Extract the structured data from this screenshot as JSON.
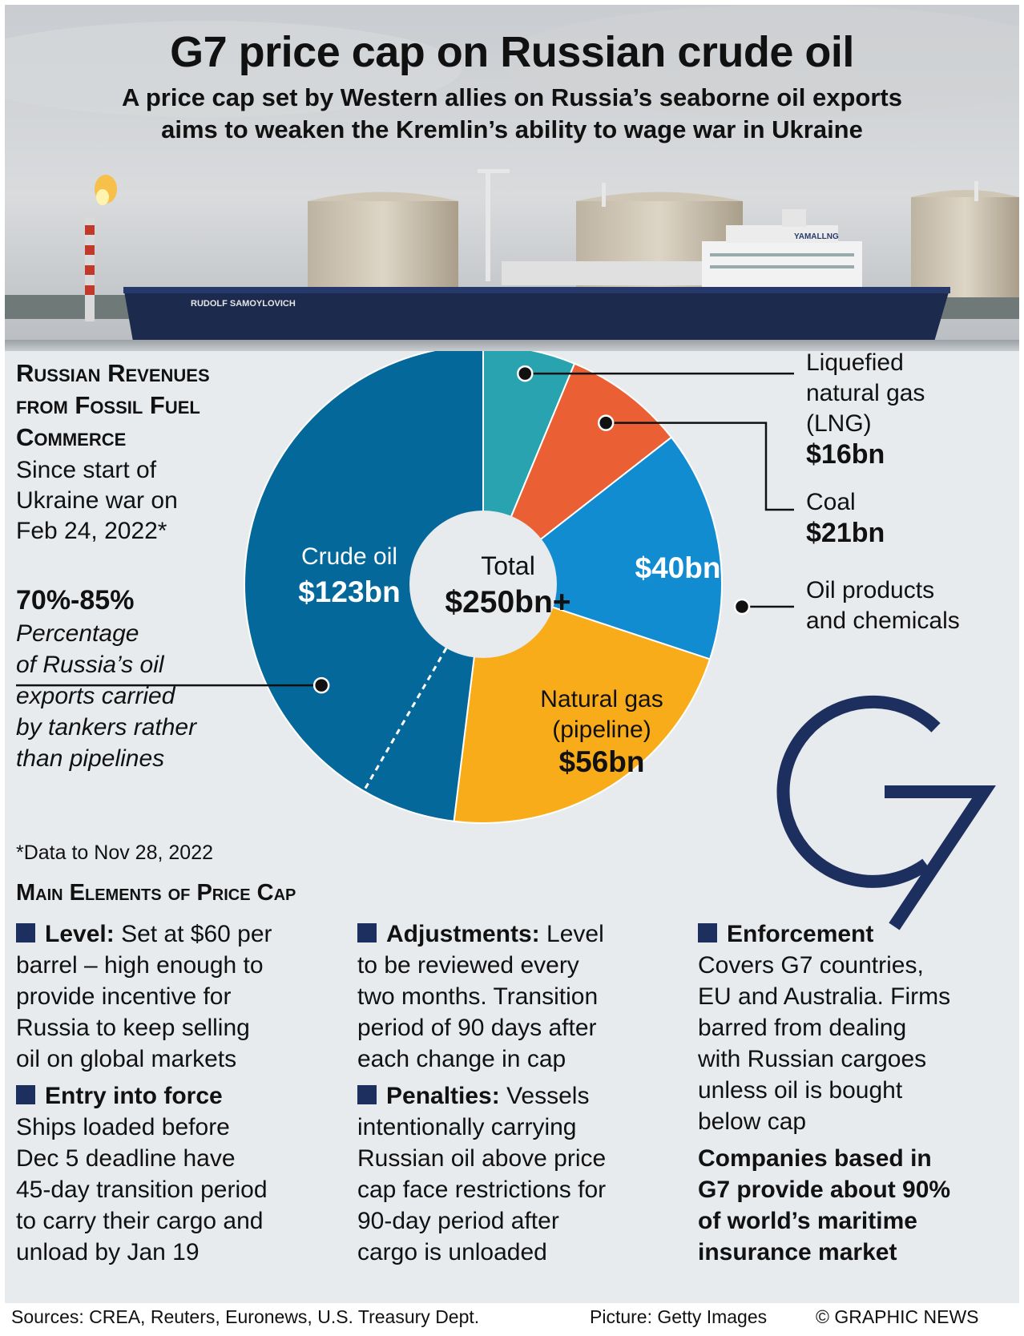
{
  "header": {
    "title": "G7 price cap on Russian crude oil",
    "subtitle_line1": "A price cap set by Western allies on Russia’s seaborne oil exports",
    "subtitle_line2": "aims to weaken the Kremlin’s ability to wage war in Ukraine",
    "ship_name": "RUDOLF SAMOYLOVICH",
    "ship_marking": "YAMALLNG"
  },
  "revenues": {
    "heading_line1": "Russian Revenues",
    "heading_line2": "from Fossil Fuel",
    "heading_line3": "Commerce",
    "sub_line1": "Since start of",
    "sub_line2": "Ukraine war on",
    "sub_line3": "Feb 24, 2022*",
    "pct_value": "70%-85%",
    "pct_line1": "Percentage",
    "pct_line2": "of Russia’s oil",
    "pct_line3": "exports carried",
    "pct_line4": "by tankers rather",
    "pct_line5": "than pipelines",
    "note": "*Data to Nov 28, 2022"
  },
  "chart_data": {
    "type": "pie",
    "title": "Russian Revenues from Fossil Fuel Commerce",
    "center_label": "Total",
    "center_value": "$250bn+",
    "unit": "$bn",
    "slices": [
      {
        "name": "Liquefied natural gas (LNG)",
        "value": 16,
        "label": "$16bn",
        "color": "#2aa3b0"
      },
      {
        "name": "Coal",
        "value": 21,
        "label": "$21bn",
        "color": "#ea5f33"
      },
      {
        "name": "Oil products and chemicals",
        "value": 40,
        "label": "$40bn",
        "color": "#118cd1"
      },
      {
        "name": "Natural gas (pipeline)",
        "value": 56,
        "label": "$56bn",
        "color": "#f9ac19"
      },
      {
        "name": "Crude oil",
        "value": 123,
        "label": "$123bn",
        "color": "#05689a"
      }
    ],
    "labels": {
      "lng_1": "Liquefied",
      "lng_2": "natural gas",
      "lng_3": "(LNG)",
      "lng_val": "$16bn",
      "coal_1": "Coal",
      "coal_val": "$21bn",
      "oil_val": "$40bn",
      "oil_1": "Oil products",
      "oil_2": "and chemicals",
      "gas_1": "Natural gas",
      "gas_2": "(pipeline)",
      "gas_val": "$56bn",
      "crude_1": "Crude oil",
      "crude_val": "$123bn"
    }
  },
  "logo": {
    "text": "G7",
    "color": "#1d2f5e"
  },
  "elements": {
    "heading": "Main Elements of Price Cap",
    "level_title": "Level:",
    "level_text_1": "Set at $60 per",
    "level_text_2": "barrel – high enough to",
    "level_text_3": "provide incentive for",
    "level_text_4": "Russia to keep selling",
    "level_text_5": "oil on global markets",
    "entry_title": "Entry into force",
    "entry_text_1": "Ships loaded before",
    "entry_text_2": "Dec 5 deadline have",
    "entry_text_3": "45-day transition period",
    "entry_text_4": "to carry their cargo and",
    "entry_text_5": "unload by Jan 19",
    "adj_title": "Adjustments:",
    "adj_text_1": "Level",
    "adj_text_2": "to be reviewed every",
    "adj_text_3": "two months. Transition",
    "adj_text_4": "period of 90 days after",
    "adj_text_5": "each change in cap",
    "pen_title": "Penalties:",
    "pen_text_1": "Vessels",
    "pen_text_2": "intentionally carrying",
    "pen_text_3": "Russian oil above price",
    "pen_text_4": "cap face restrictions for",
    "pen_text_5": "90-day period after",
    "pen_text_6": "cargo is unloaded",
    "enf_title": "Enforcement",
    "enf_text_1": "Covers G7 countries,",
    "enf_text_2": "EU and Australia. Firms",
    "enf_text_3": "barred from dealing",
    "enf_text_4": "with Russian cargoes",
    "enf_text_5": "unless oil is bought",
    "enf_text_6": "below cap",
    "ins_1": "Companies based in",
    "ins_2": "G7 provide about 90%",
    "ins_3": "of world’s maritime",
    "ins_4": "insurance market"
  },
  "footer": {
    "sources": "Sources: CREA, Reuters, Euronews, U.S. Treasury Dept.",
    "picture": "Picture: Getty Images",
    "credit": "© GRAPHIC NEWS"
  }
}
